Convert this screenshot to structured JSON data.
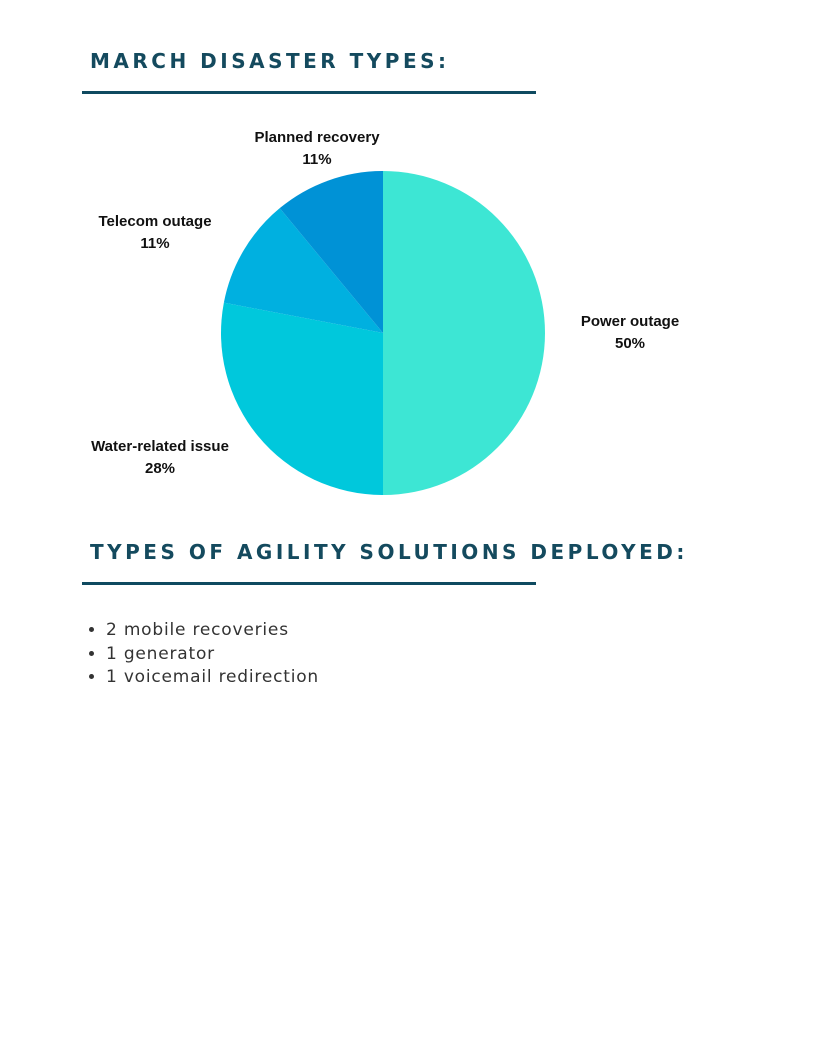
{
  "header": {
    "title": "MARCH DISASTER TYPES:"
  },
  "chart_data": {
    "type": "pie",
    "categories": [
      "Power outage",
      "Water-related issue",
      "Telecom outage",
      "Planned recovery"
    ],
    "values": [
      50,
      28,
      11,
      11
    ],
    "value_labels": [
      "50%",
      "28%",
      "11%",
      "11%"
    ],
    "colors": [
      "#3de6d4",
      "#00c8dc",
      "#00b0e0",
      "#0092d6"
    ]
  },
  "solutions": {
    "title": "TYPES OF AGILITY SOLUTIONS DEPLOYED:",
    "items": [
      "2 mobile recoveries",
      "1 generator",
      "1 voicemail redirection"
    ]
  }
}
